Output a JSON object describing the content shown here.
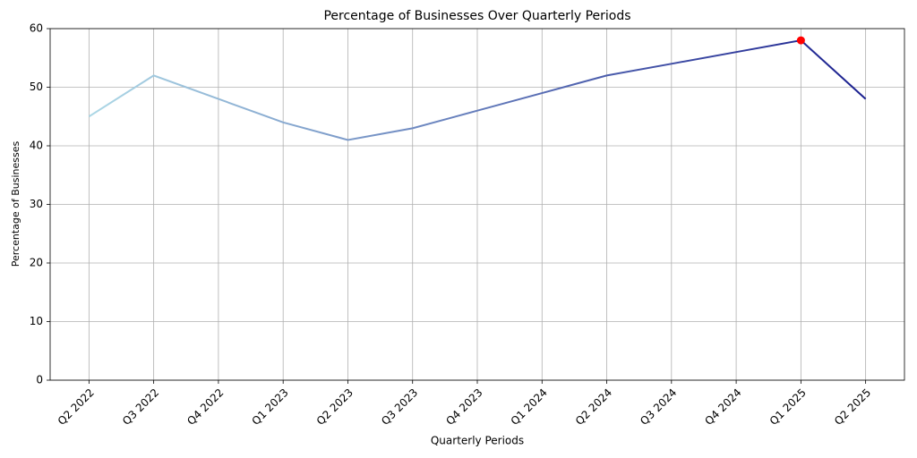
{
  "chart_data": {
    "type": "line",
    "title": "Percentage of Businesses Over Quarterly Periods",
    "x_label": "Quarterly Periods",
    "y_label": "Percentage of Businesses",
    "categories": [
      "Q2 2022",
      "Q3 2022",
      "Q4 2022",
      "Q1 2023",
      "Q2 2023",
      "Q3 2023",
      "Q4 2023",
      "Q1 2024",
      "Q2 2024",
      "Q3 2024",
      "Q4 2024",
      "Q1 2025",
      "Q2 2025"
    ],
    "values": [
      45,
      52,
      48,
      44,
      41,
      43,
      46,
      49,
      52,
      54,
      56,
      58,
      48
    ],
    "gradient": [
      "#add8e6",
      "#1a1f8f"
    ],
    "highlight_max_color": "#ff0000",
    "ylim": [
      0,
      60
    ],
    "yticks": [
      0,
      10,
      20,
      30,
      40,
      50,
      60
    ],
    "grid": true
  }
}
